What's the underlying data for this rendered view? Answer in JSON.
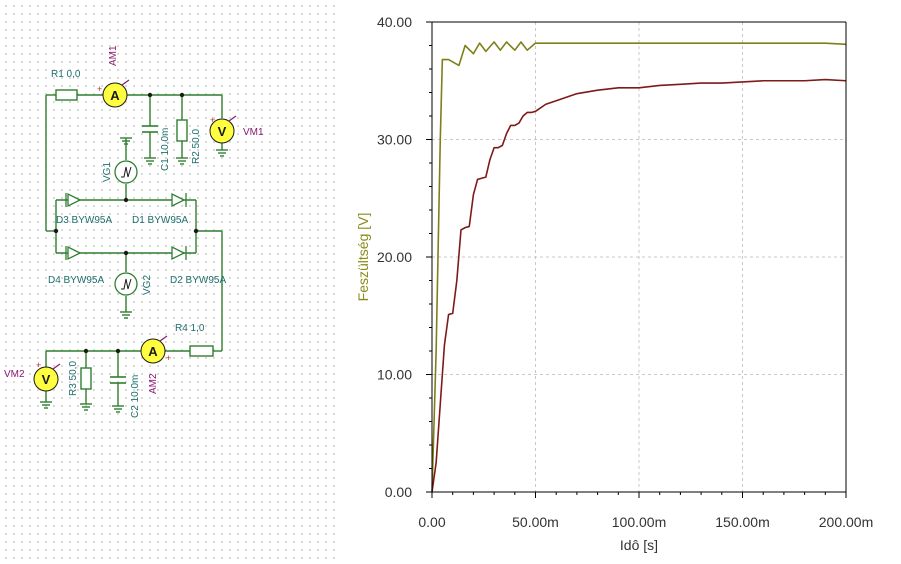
{
  "schematic": {
    "labels": {
      "r1": "R1 0,0",
      "am1": "AM1",
      "vm1": "VM1",
      "c1": "C1 10,0m",
      "r2": "R2 50,0",
      "vg1": "VG1",
      "d3": "D3 BYW95A",
      "d1": "D1 BYW95A",
      "d4": "D4 BYW95A",
      "d2": "D2 BYW95A",
      "vg2": "VG2",
      "r4": "R4 1,0",
      "vm2": "VM2",
      "r3": "R3 50,0",
      "c2": "C2 10,0m",
      "am2": "AM2"
    },
    "meter_letters": {
      "ammeter": "A",
      "voltmeter": "V"
    },
    "colors": {
      "wire": "#2f7f2f",
      "meter_fill": "#ffff40",
      "meter_label": "#8a1a6e",
      "component_label": "#1e6e6e"
    }
  },
  "chart_data": {
    "type": "line",
    "xlabel": "Idô [s]",
    "ylabel": "Feszültség [V]",
    "xlim": [
      0,
      0.2
    ],
    "ylim": [
      0,
      40
    ],
    "x_ticks": [
      0,
      0.05,
      0.1,
      0.15,
      0.2
    ],
    "x_tick_labels": [
      "0.00",
      "50.00m",
      "100.00m",
      "150.00m",
      "200.00m"
    ],
    "y_ticks": [
      0,
      10,
      20,
      30,
      40
    ],
    "y_tick_labels": [
      "0.00",
      "10.00",
      "20.00",
      "30.00",
      "40.00"
    ],
    "grid": true,
    "series": [
      {
        "color": "#7f7f1a",
        "x": [
          0,
          0.002,
          0.004,
          0.005,
          0.008,
          0.013,
          0.016,
          0.02,
          0.023,
          0.026,
          0.03,
          0.033,
          0.036,
          0.04,
          0.043,
          0.046,
          0.05,
          0.06,
          0.07,
          0.08,
          0.09,
          0.1,
          0.11,
          0.12,
          0.13,
          0.14,
          0.15,
          0.16,
          0.17,
          0.18,
          0.19,
          0.2
        ],
        "y": [
          0,
          12,
          30,
          36.8,
          36.8,
          36.3,
          38.0,
          37.3,
          38.2,
          37.5,
          38.3,
          37.6,
          38.3,
          37.6,
          38.3,
          37.6,
          38.2,
          38.2,
          38.2,
          38.2,
          38.2,
          38.2,
          38.2,
          38.2,
          38.2,
          38.2,
          38.2,
          38.2,
          38.2,
          38.2,
          38.2,
          38.1
        ]
      },
      {
        "color": "#7f1a1a",
        "x": [
          0,
          0.002,
          0.004,
          0.006,
          0.008,
          0.01,
          0.012,
          0.014,
          0.016,
          0.018,
          0.02,
          0.022,
          0.024,
          0.026,
          0.028,
          0.03,
          0.032,
          0.034,
          0.036,
          0.038,
          0.04,
          0.042,
          0.044,
          0.046,
          0.048,
          0.05,
          0.055,
          0.06,
          0.07,
          0.08,
          0.09,
          0.1,
          0.11,
          0.12,
          0.13,
          0.14,
          0.15,
          0.16,
          0.17,
          0.18,
          0.19,
          0.2
        ],
        "y": [
          0,
          2.5,
          7.5,
          12.5,
          15.1,
          15.2,
          18.0,
          22.3,
          22.5,
          22.6,
          25.3,
          26.6,
          26.7,
          26.8,
          28.3,
          29.3,
          29.3,
          29.5,
          30.5,
          31.2,
          31.2,
          31.4,
          32.0,
          32.3,
          32.3,
          32.4,
          33.0,
          33.3,
          33.9,
          34.2,
          34.4,
          34.4,
          34.6,
          34.7,
          34.8,
          34.8,
          34.9,
          35.0,
          35.0,
          35.0,
          35.1,
          35.0
        ]
      }
    ],
    "colors": {
      "axis": "#000000",
      "grid": "#c8c8c8",
      "tick_text": "#333333",
      "ylabel": "#8a8a1a",
      "xlabel": "#333333"
    }
  }
}
